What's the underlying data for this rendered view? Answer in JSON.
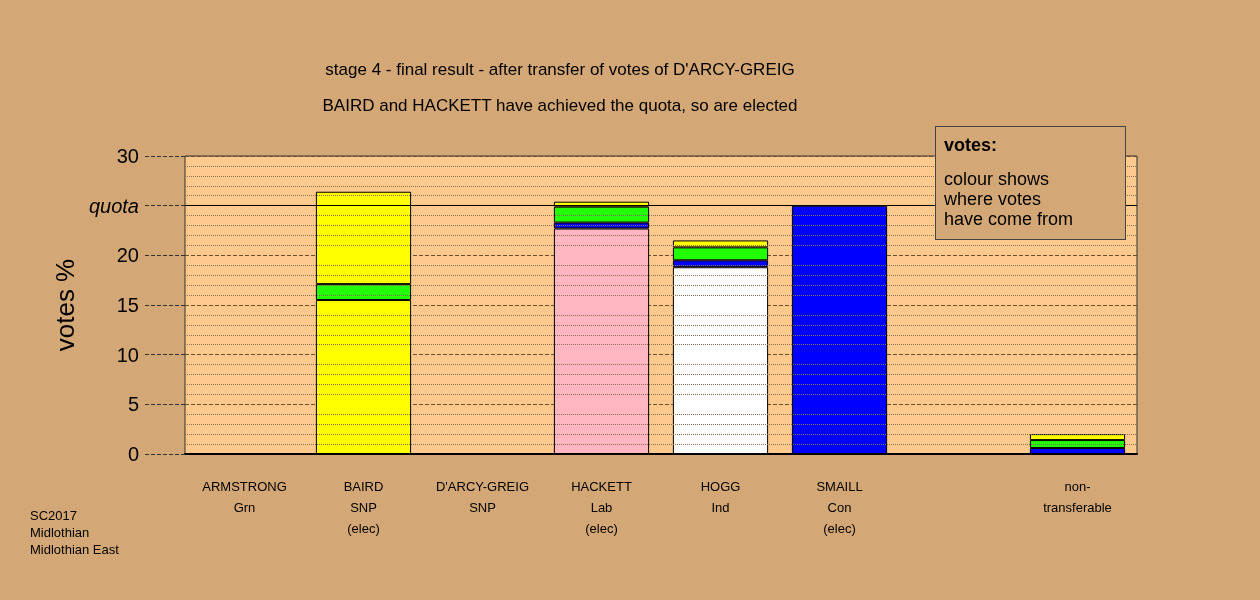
{
  "chart_data": {
    "type": "bar",
    "stacked": true,
    "title": "stage 4 - final result - after transfer of votes of D'ARCY-GREIG",
    "subtitle": "BAIRD and HACKETT have achieved the quota, so are elected",
    "ylabel": "votes %",
    "categories": [
      "ARMSTRONG\nGrn",
      "BAIRD\nSNP\n(elec)",
      "D'ARCY-GREIG\nSNP",
      "HACKETT\nLab\n(elec)",
      "HOGG\nInd",
      "SMAILL\nCon\n(elec)",
      null,
      "non-\ntransferable"
    ],
    "series": [
      {
        "colors": [
          "#ffff00",
          "#ffff00",
          "#ffff00",
          "#ffb6c1",
          "#ffffff",
          "#0000ff",
          "#0000ff",
          "#0000ff"
        ],
        "values": [
          null,
          15.5,
          null,
          22.7,
          18.8,
          25.0,
          null,
          null
        ]
      },
      {
        "color": "#0000ff",
        "values": [
          null,
          null,
          null,
          0.6,
          0.7,
          null,
          null,
          0.6
        ]
      },
      {
        "color": "#22ff00",
        "values": [
          null,
          1.6,
          null,
          1.6,
          1.3,
          null,
          null,
          0.8
        ]
      },
      {
        "color": "#ffff00",
        "values": [
          null,
          9.3,
          null,
          0.5,
          0.7,
          null,
          null,
          0.6
        ]
      }
    ],
    "ylim": [
      0,
      30
    ],
    "yticks": [
      0,
      {
        "value": 1,
        "label": null
      },
      {
        "value": 2,
        "label": null
      },
      {
        "value": 3,
        "label": null
      },
      {
        "value": 4,
        "label": null
      },
      5,
      {
        "value": 6,
        "label": null
      },
      {
        "value": 7,
        "label": null
      },
      {
        "value": 8,
        "label": null
      },
      {
        "value": 9,
        "label": null
      },
      10,
      {
        "value": 11,
        "label": null
      },
      {
        "value": 12,
        "label": null
      },
      {
        "value": 13,
        "label": null
      },
      {
        "value": 14,
        "label": null
      },
      15,
      {
        "value": 16,
        "label": null
      },
      {
        "value": 17,
        "label": null
      },
      {
        "value": 18,
        "label": null
      },
      {
        "value": 19,
        "label": null
      },
      20,
      {
        "value": 21,
        "label": null
      },
      {
        "value": 22,
        "label": null
      },
      {
        "value": 23,
        "label": null
      },
      {
        "value": 24,
        "label": null
      },
      {
        "value": 25,
        "label": "quota"
      },
      {
        "value": 26,
        "label": null
      },
      {
        "value": 27,
        "label": null
      },
      {
        "value": 28,
        "label": null
      },
      {
        "value": 29,
        "label": null
      },
      30
    ],
    "grid": true,
    "ref_lines": [
      {
        "axis": "y",
        "value": 25,
        "color": "#000000",
        "line_style": "solid"
      }
    ],
    "annotations": [
      "votes:",
      "colour shows\nwhere votes\nhave come from",
      "SC2017\nMidlothian\nMidlothian East"
    ]
  }
}
